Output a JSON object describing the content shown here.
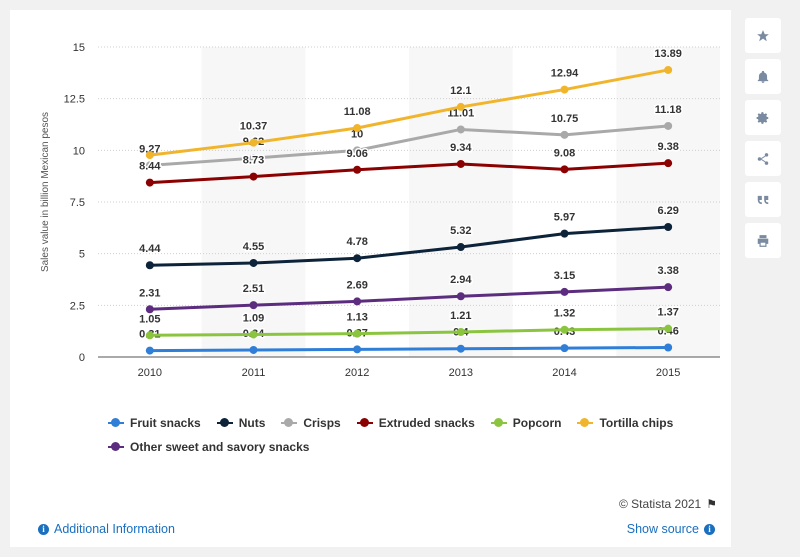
{
  "chart_data": {
    "type": "line",
    "title": "",
    "xlabel": "",
    "ylabel": "Sales value in billion Mexican pesos",
    "categories": [
      "2010",
      "2011",
      "2012",
      "2013",
      "2014",
      "2015"
    ],
    "ylim": [
      0,
      15
    ],
    "yticks": [
      "0",
      "2.5",
      "5",
      "7.5",
      "10",
      "12.5",
      "15"
    ],
    "grid": true,
    "legend_position": "bottom",
    "series": [
      {
        "name": "Fruit snacks",
        "color": "#2f7ed8",
        "values": [
          0.31,
          0.34,
          0.37,
          0.4,
          0.43,
          0.46
        ],
        "labels": [
          "0.31",
          "0.34",
          "0.37",
          "0.4",
          "0.43",
          "0.46"
        ]
      },
      {
        "name": "Nuts",
        "color": "#0d233a",
        "values": [
          4.44,
          4.55,
          4.78,
          5.32,
          5.97,
          6.29
        ],
        "labels": [
          "4.44",
          "4.55",
          "4.78",
          "5.32",
          "5.97",
          "6.29"
        ]
      },
      {
        "name": "Crisps",
        "color": "#a9a9a9",
        "values": [
          9.27,
          9.62,
          10,
          11.01,
          10.75,
          11.18
        ],
        "labels": [
          "9.27",
          "9.62",
          "10",
          "11.01",
          "10.75",
          "11.18"
        ]
      },
      {
        "name": "Extruded snacks",
        "color": "#8b0000",
        "values": [
          8.44,
          8.73,
          9.06,
          9.34,
          9.08,
          9.38
        ],
        "labels": [
          "8.44",
          "8.73",
          "9.06",
          "9.34",
          "9.08",
          "9.38"
        ]
      },
      {
        "name": "Popcorn",
        "color": "#8bc540",
        "values": [
          1.05,
          1.09,
          1.13,
          1.21,
          1.32,
          1.37
        ],
        "labels": [
          "1.05",
          "1.09",
          "1.13",
          "1.21",
          "1.32",
          "1.37"
        ]
      },
      {
        "name": "Tortilla chips",
        "color": "#f1b52c",
        "values": [
          9.77,
          10.37,
          11.08,
          12.1,
          12.94,
          13.89
        ],
        "labels": [
          "",
          "10.37",
          "11.08",
          "12.1",
          "12.94",
          "13.89"
        ]
      },
      {
        "name": "Other sweet and savory snacks",
        "color": "#5c2d7e",
        "values": [
          2.31,
          2.51,
          2.69,
          2.94,
          3.15,
          3.38
        ],
        "labels": [
          "2.31",
          "2.51",
          "2.69",
          "2.94",
          "3.15",
          "3.38"
        ]
      }
    ]
  },
  "footer": {
    "credit": "© Statista 2021",
    "additional_info": "Additional Information",
    "show_source": "Show source"
  },
  "sidebar": {
    "icons": [
      "star-icon",
      "bell-icon",
      "gear-icon",
      "share-icon",
      "quote-icon",
      "print-icon"
    ]
  }
}
